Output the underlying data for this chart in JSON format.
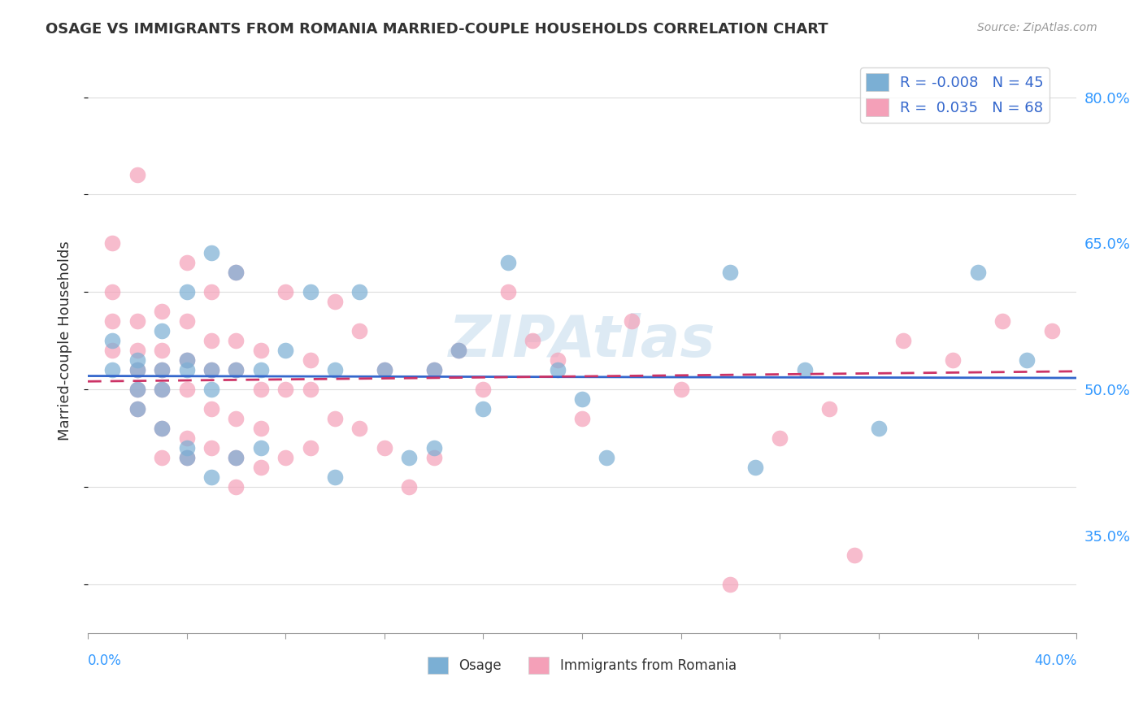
{
  "title": "OSAGE VS IMMIGRANTS FROM ROMANIA MARRIED-COUPLE HOUSEHOLDS CORRELATION CHART",
  "source_text": "Source: ZipAtlas.com",
  "ylabel": "Married-couple Households",
  "xlim": [
    0.0,
    0.4
  ],
  "ylim": [
    0.25,
    0.85
  ],
  "ytick_vals_right": [
    0.35,
    0.5,
    0.65,
    0.8
  ],
  "blue_color": "#7bafd4",
  "pink_color": "#f4a0b8",
  "blue_line_color": "#3366cc",
  "pink_line_color": "#cc3366",
  "watermark": "ZIPAtlas",
  "background_color": "#ffffff",
  "grid_color": "#dddddd",
  "osage_x": [
    0.01,
    0.01,
    0.02,
    0.02,
    0.02,
    0.02,
    0.03,
    0.03,
    0.03,
    0.03,
    0.04,
    0.04,
    0.04,
    0.04,
    0.04,
    0.05,
    0.05,
    0.05,
    0.05,
    0.06,
    0.06,
    0.06,
    0.07,
    0.07,
    0.08,
    0.09,
    0.1,
    0.1,
    0.11,
    0.12,
    0.13,
    0.14,
    0.14,
    0.15,
    0.16,
    0.17,
    0.19,
    0.2,
    0.21,
    0.26,
    0.27,
    0.29,
    0.32,
    0.36,
    0.38
  ],
  "osage_y": [
    0.52,
    0.55,
    0.48,
    0.5,
    0.52,
    0.53,
    0.46,
    0.5,
    0.52,
    0.56,
    0.43,
    0.44,
    0.52,
    0.53,
    0.6,
    0.41,
    0.5,
    0.52,
    0.64,
    0.43,
    0.52,
    0.62,
    0.44,
    0.52,
    0.54,
    0.6,
    0.41,
    0.52,
    0.6,
    0.52,
    0.43,
    0.44,
    0.52,
    0.54,
    0.48,
    0.63,
    0.52,
    0.49,
    0.43,
    0.62,
    0.42,
    0.52,
    0.46,
    0.62,
    0.53
  ],
  "romania_x": [
    0.01,
    0.01,
    0.01,
    0.01,
    0.02,
    0.02,
    0.02,
    0.02,
    0.02,
    0.02,
    0.03,
    0.03,
    0.03,
    0.03,
    0.03,
    0.03,
    0.04,
    0.04,
    0.04,
    0.04,
    0.04,
    0.04,
    0.05,
    0.05,
    0.05,
    0.05,
    0.05,
    0.06,
    0.06,
    0.06,
    0.06,
    0.06,
    0.06,
    0.07,
    0.07,
    0.07,
    0.07,
    0.08,
    0.08,
    0.08,
    0.09,
    0.09,
    0.09,
    0.1,
    0.1,
    0.11,
    0.11,
    0.12,
    0.12,
    0.13,
    0.14,
    0.14,
    0.15,
    0.16,
    0.17,
    0.18,
    0.19,
    0.2,
    0.22,
    0.24,
    0.26,
    0.28,
    0.3,
    0.31,
    0.33,
    0.35,
    0.37,
    0.39
  ],
  "romania_y": [
    0.54,
    0.57,
    0.6,
    0.65,
    0.48,
    0.5,
    0.52,
    0.54,
    0.57,
    0.72,
    0.43,
    0.46,
    0.5,
    0.52,
    0.54,
    0.58,
    0.43,
    0.45,
    0.5,
    0.53,
    0.57,
    0.63,
    0.44,
    0.48,
    0.52,
    0.55,
    0.6,
    0.4,
    0.43,
    0.47,
    0.52,
    0.55,
    0.62,
    0.42,
    0.46,
    0.5,
    0.54,
    0.43,
    0.5,
    0.6,
    0.44,
    0.5,
    0.53,
    0.47,
    0.59,
    0.46,
    0.56,
    0.44,
    0.52,
    0.4,
    0.43,
    0.52,
    0.54,
    0.5,
    0.6,
    0.55,
    0.53,
    0.47,
    0.57,
    0.5,
    0.3,
    0.45,
    0.48,
    0.33,
    0.55,
    0.53,
    0.57,
    0.56
  ],
  "osage_R": -0.008,
  "osage_N": 45,
  "romania_R": 0.035,
  "romania_N": 68
}
